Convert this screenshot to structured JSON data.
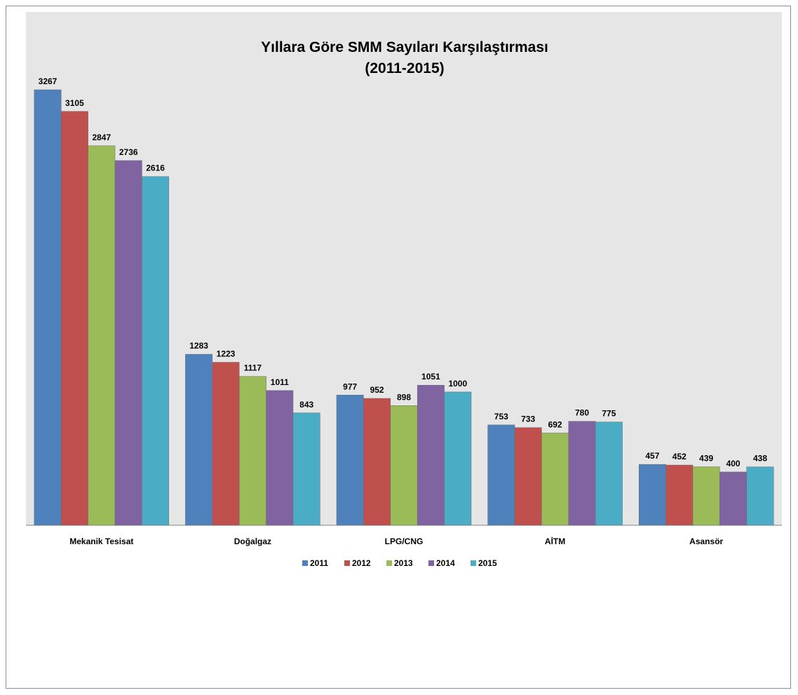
{
  "chart_data": {
    "type": "bar",
    "title": "Yıllara Göre SMM Sayıları Karşılaştırması",
    "subtitle": "(2011-2015)",
    "categories": [
      "Mekanik Tesisat",
      "Doğalgaz",
      "LPG/CNG",
      "AİTM",
      "Asansör"
    ],
    "series": [
      {
        "name": "2011",
        "color": "#4f81bd",
        "values": [
          3267,
          1283,
          977,
          753,
          457
        ]
      },
      {
        "name": "2012",
        "color": "#c0504d",
        "values": [
          3105,
          1223,
          952,
          733,
          452
        ]
      },
      {
        "name": "2013",
        "color": "#9bbb59",
        "values": [
          2847,
          1117,
          898,
          692,
          439
        ]
      },
      {
        "name": "2014",
        "color": "#8064a2",
        "values": [
          2736,
          1011,
          1051,
          780,
          400
        ]
      },
      {
        "name": "2015",
        "color": "#4bacc6",
        "values": [
          2616,
          843,
          1000,
          775,
          438
        ]
      }
    ],
    "ylim": [
      0,
      3500
    ],
    "grid": false,
    "plot_background": "#e6e6e6",
    "legend_position": "bottom"
  }
}
